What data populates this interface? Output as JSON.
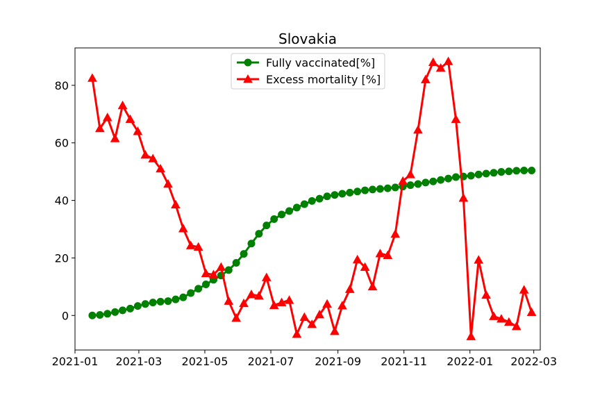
{
  "chart_data": {
    "type": "line",
    "title": "Slovakia",
    "xlabel": "",
    "ylabel": "",
    "x_ticks": [
      "2021-01",
      "2021-03",
      "2021-05",
      "2021-07",
      "2021-09",
      "2021-11",
      "2022-01",
      "2022-03"
    ],
    "y_ticks": [
      "0",
      "20",
      "40",
      "60",
      "80"
    ],
    "xlim": [
      "2021-01-01",
      "2022-03-07"
    ],
    "ylim": [
      -12,
      93
    ],
    "grid": false,
    "legend": {
      "position": "top-center"
    },
    "x": [
      "2021-01-17",
      "2021-01-24",
      "2021-01-31",
      "2021-02-07",
      "2021-02-14",
      "2021-02-21",
      "2021-02-28",
      "2021-03-07",
      "2021-03-14",
      "2021-03-21",
      "2021-03-28",
      "2021-04-04",
      "2021-04-11",
      "2021-04-18",
      "2021-04-25",
      "2021-05-02",
      "2021-05-09",
      "2021-05-16",
      "2021-05-23",
      "2021-05-30",
      "2021-06-06",
      "2021-06-13",
      "2021-06-20",
      "2021-06-27",
      "2021-07-04",
      "2021-07-11",
      "2021-07-18",
      "2021-07-25",
      "2021-08-01",
      "2021-08-08",
      "2021-08-15",
      "2021-08-22",
      "2021-08-29",
      "2021-09-05",
      "2021-09-12",
      "2021-09-19",
      "2021-09-26",
      "2021-10-03",
      "2021-10-10",
      "2021-10-17",
      "2021-10-24",
      "2021-10-31",
      "2021-11-07",
      "2021-11-14",
      "2021-11-21",
      "2021-11-28",
      "2021-12-05",
      "2021-12-12",
      "2021-12-19",
      "2021-12-26",
      "2022-01-02",
      "2022-01-09",
      "2022-01-16",
      "2022-01-23",
      "2022-01-30",
      "2022-02-06",
      "2022-02-13",
      "2022-02-20",
      "2022-02-27"
    ],
    "series": [
      {
        "name": "Fully vaccinated[%]",
        "color": "#008000",
        "marker": "circle",
        "values": [
          0.0,
          0.2,
          0.6,
          1.2,
          1.8,
          2.4,
          3.3,
          4.0,
          4.5,
          4.8,
          5.0,
          5.6,
          6.3,
          7.8,
          9.3,
          10.8,
          12.4,
          13.9,
          15.8,
          18.3,
          21.4,
          25.0,
          28.4,
          31.3,
          33.5,
          35.1,
          36.3,
          37.5,
          38.7,
          39.8,
          40.6,
          41.4,
          41.9,
          42.3,
          42.7,
          43.1,
          43.5,
          43.8,
          44.0,
          44.2,
          44.5,
          44.8,
          45.3,
          45.7,
          46.2,
          46.6,
          47.1,
          47.6,
          48.1,
          48.3,
          48.6,
          49.0,
          49.3,
          49.6,
          49.9,
          50.1,
          50.3,
          50.4,
          50.4
        ]
      },
      {
        "name": "Excess mortality [%]",
        "color": "#ff0000",
        "marker": "triangle",
        "values": [
          82.5,
          65.0,
          68.8,
          61.5,
          73.0,
          68.2,
          64.0,
          55.8,
          54.5,
          51.0,
          45.7,
          38.5,
          30.2,
          24.3,
          23.8,
          14.6,
          14.2,
          16.8,
          5.0,
          -0.9,
          4.2,
          7.3,
          6.8,
          13.2,
          3.5,
          4.5,
          5.3,
          -6.5,
          -0.6,
          -3.1,
          0.3,
          4.0,
          -5.5,
          3.4,
          9.1,
          19.4,
          16.8,
          10.0,
          21.5,
          20.9,
          28.3,
          46.7,
          49.0,
          64.5,
          82.0,
          88.0,
          86.0,
          88.3,
          68.2,
          40.8,
          -7.3,
          19.3,
          7.1,
          -0.3,
          -1.2,
          -2.3,
          -3.8,
          8.9,
          1.1
        ]
      }
    ]
  }
}
